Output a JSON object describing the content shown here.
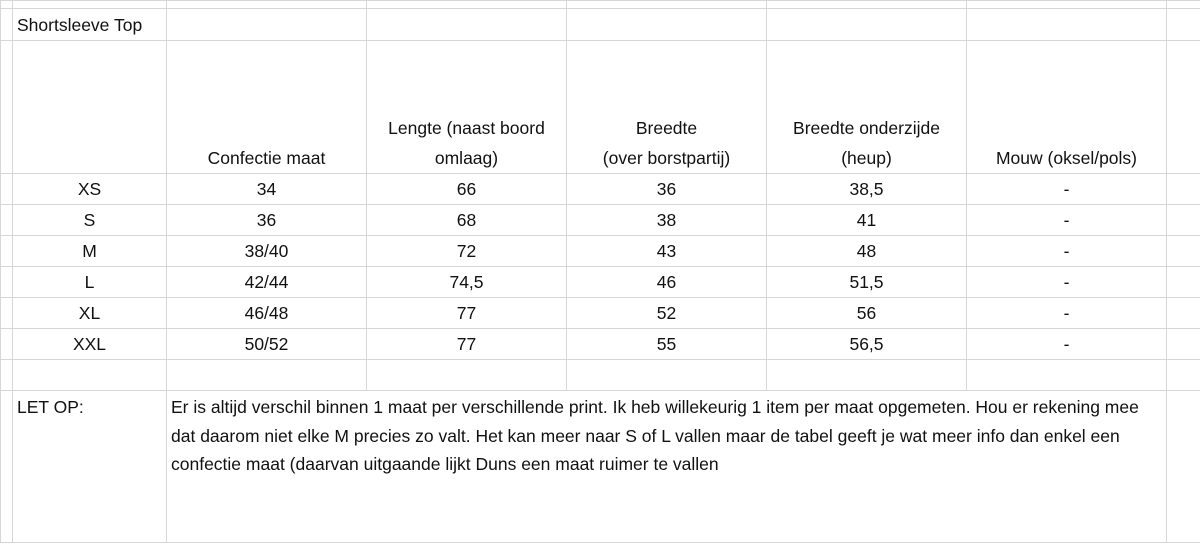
{
  "sheet": {
    "title": "Shortsleeve Top",
    "columns": [
      "",
      "Confectie maat",
      "Lengte (naast boord omlaag)",
      "Breedte (over borstpartij)",
      "Breedte onderzijde (heup)",
      "Mouw (oksel/pols)"
    ],
    "header_lines": [
      [
        ""
      ],
      [
        "Confectie maat"
      ],
      [
        "Lengte (naast boord",
        "omlaag)"
      ],
      [
        "Breedte",
        "(over borstpartij)"
      ],
      [
        "Breedte onderzijde",
        "(heup)"
      ],
      [
        "Mouw (oksel/pols)"
      ]
    ],
    "rows": [
      [
        "XS",
        "34",
        "66",
        "36",
        "38,5",
        "-"
      ],
      [
        "S",
        "36",
        "68",
        "38",
        "41",
        "-"
      ],
      [
        "M",
        "38/40",
        "72",
        "43",
        "48",
        "-"
      ],
      [
        "L",
        "42/44",
        "74,5",
        "46",
        "51,5",
        "-"
      ],
      [
        "XL",
        "46/48",
        "77",
        "52",
        "56",
        "-"
      ],
      [
        "XXL",
        "50/52",
        "77",
        "55",
        "56,5",
        "-"
      ]
    ],
    "note_label": "LET OP:",
    "note_text": "Er is altijd verschil binnen 1 maat per verschillende print. Ik heb willekeurig 1 item per maat opgemeten. Hou er rekening mee dat daarom niet elke M precies zo valt. Het kan meer naar S of L vallen maar de tabel geeft je wat meer info dan enkel een confectie maat (daarvan uitgaande lijkt Duns een maat ruimer te vallen"
  }
}
